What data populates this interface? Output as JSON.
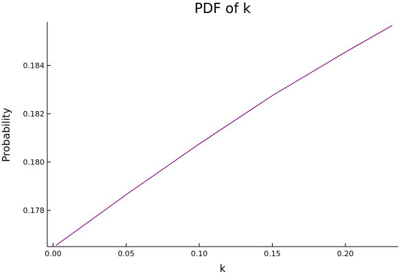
{
  "chart_data": {
    "type": "line",
    "title": "PDF of k",
    "xlabel": "k",
    "ylabel": "Probability",
    "xlim": [
      -0.004,
      0.236
    ],
    "ylim": [
      0.1765,
      0.1858
    ],
    "x_ticks": [
      0.0,
      0.05,
      0.1,
      0.15,
      0.2
    ],
    "x_tick_labels": [
      "0.00",
      "0.05",
      "0.10",
      "0.15",
      "0.20"
    ],
    "y_ticks": [
      0.178,
      0.18,
      0.182,
      0.184
    ],
    "y_tick_labels": [
      "0.178",
      "0.180",
      "0.182",
      "0.184"
    ],
    "grid": false,
    "legend": false,
    "color": "#800080",
    "series": [
      {
        "x": [
          0.002,
          0.05,
          0.1,
          0.15,
          0.2,
          0.232
        ],
        "y": [
          0.17655,
          0.17865,
          0.18075,
          0.18275,
          0.18455,
          0.18565
        ]
      }
    ]
  }
}
